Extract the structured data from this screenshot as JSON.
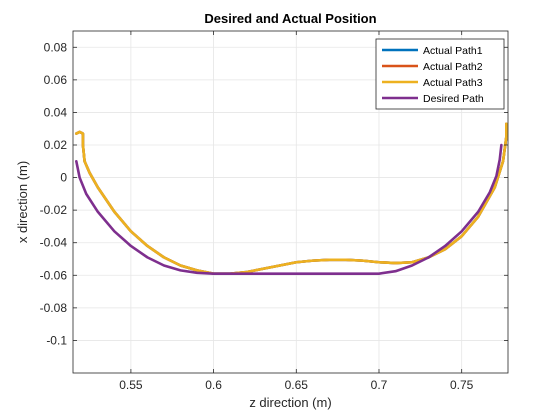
{
  "chart_data": {
    "type": "line",
    "title": "Desired and Actual Position",
    "xlabel": "z direction (m)",
    "ylabel": "x direction (m)",
    "xlim": [
      0.515,
      0.778
    ],
    "ylim": [
      -0.12,
      0.09
    ],
    "xticks": [
      0.55,
      0.6,
      0.65,
      0.7,
      0.75
    ],
    "xtick_labels": [
      "0.55",
      "0.6",
      "0.65",
      "0.7",
      "0.75"
    ],
    "yticks": [
      0.08,
      0.06,
      0.04,
      0.02,
      0,
      -0.02,
      -0.04,
      -0.06,
      -0.08,
      -0.1
    ],
    "ytick_labels": [
      "0.08",
      "0.06",
      "0.04",
      "0.02",
      "0",
      "-0.02",
      "-0.04",
      "-0.06",
      "-0.08",
      "-0.1"
    ],
    "grid": true,
    "legend_position": "top-right",
    "series": [
      {
        "name": "Actual Path1",
        "color": "#0072BD",
        "points": [
          [
            0.517,
            0.027
          ],
          [
            0.519,
            0.028
          ],
          [
            0.521,
            0.027
          ],
          [
            0.521,
            0.02
          ],
          [
            0.522,
            0.01
          ],
          [
            0.525,
            0.003
          ],
          [
            0.53,
            -0.006
          ],
          [
            0.54,
            -0.021
          ],
          [
            0.55,
            -0.033
          ],
          [
            0.56,
            -0.042
          ],
          [
            0.57,
            -0.049
          ],
          [
            0.58,
            -0.054
          ],
          [
            0.59,
            -0.057
          ],
          [
            0.6,
            -0.059
          ],
          [
            0.61,
            -0.059
          ],
          [
            0.62,
            -0.058
          ],
          [
            0.63,
            -0.056
          ],
          [
            0.64,
            -0.054
          ],
          [
            0.65,
            -0.052
          ],
          [
            0.66,
            -0.051
          ],
          [
            0.67,
            -0.0505
          ],
          [
            0.68,
            -0.0505
          ],
          [
            0.69,
            -0.051
          ],
          [
            0.7,
            -0.052
          ],
          [
            0.71,
            -0.0525
          ],
          [
            0.72,
            -0.052
          ],
          [
            0.73,
            -0.049
          ],
          [
            0.74,
            -0.044
          ],
          [
            0.75,
            -0.036
          ],
          [
            0.76,
            -0.024
          ],
          [
            0.77,
            -0.006
          ],
          [
            0.775,
            0.01
          ],
          [
            0.777,
            0.025
          ],
          [
            0.777,
            0.033
          ]
        ]
      },
      {
        "name": "Actual Path2",
        "color": "#D95319",
        "points": [
          [
            0.517,
            0.027
          ],
          [
            0.519,
            0.028
          ],
          [
            0.521,
            0.027
          ],
          [
            0.521,
            0.02
          ],
          [
            0.522,
            0.01
          ],
          [
            0.525,
            0.003
          ],
          [
            0.53,
            -0.006
          ],
          [
            0.54,
            -0.021
          ],
          [
            0.55,
            -0.033
          ],
          [
            0.56,
            -0.042
          ],
          [
            0.57,
            -0.049
          ],
          [
            0.58,
            -0.054
          ],
          [
            0.59,
            -0.057
          ],
          [
            0.6,
            -0.059
          ],
          [
            0.61,
            -0.059
          ],
          [
            0.62,
            -0.058
          ],
          [
            0.63,
            -0.056
          ],
          [
            0.64,
            -0.054
          ],
          [
            0.65,
            -0.052
          ],
          [
            0.66,
            -0.051
          ],
          [
            0.67,
            -0.0505
          ],
          [
            0.68,
            -0.0505
          ],
          [
            0.69,
            -0.051
          ],
          [
            0.7,
            -0.052
          ],
          [
            0.71,
            -0.0525
          ],
          [
            0.72,
            -0.052
          ],
          [
            0.73,
            -0.049
          ],
          [
            0.74,
            -0.044
          ],
          [
            0.75,
            -0.036
          ],
          [
            0.76,
            -0.024
          ],
          [
            0.77,
            -0.006
          ],
          [
            0.775,
            0.01
          ],
          [
            0.777,
            0.025
          ],
          [
            0.777,
            0.033
          ]
        ]
      },
      {
        "name": "Actual Path3",
        "color": "#EDB120",
        "points": [
          [
            0.517,
            0.027
          ],
          [
            0.519,
            0.028
          ],
          [
            0.521,
            0.027
          ],
          [
            0.521,
            0.02
          ],
          [
            0.522,
            0.01
          ],
          [
            0.525,
            0.003
          ],
          [
            0.53,
            -0.006
          ],
          [
            0.54,
            -0.021
          ],
          [
            0.55,
            -0.033
          ],
          [
            0.56,
            -0.042
          ],
          [
            0.57,
            -0.049
          ],
          [
            0.58,
            -0.054
          ],
          [
            0.59,
            -0.057
          ],
          [
            0.6,
            -0.059
          ],
          [
            0.61,
            -0.059
          ],
          [
            0.62,
            -0.058
          ],
          [
            0.63,
            -0.056
          ],
          [
            0.64,
            -0.054
          ],
          [
            0.65,
            -0.052
          ],
          [
            0.66,
            -0.051
          ],
          [
            0.67,
            -0.0505
          ],
          [
            0.68,
            -0.0505
          ],
          [
            0.69,
            -0.051
          ],
          [
            0.7,
            -0.052
          ],
          [
            0.71,
            -0.0525
          ],
          [
            0.72,
            -0.052
          ],
          [
            0.73,
            -0.049
          ],
          [
            0.74,
            -0.044
          ],
          [
            0.75,
            -0.036
          ],
          [
            0.76,
            -0.024
          ],
          [
            0.77,
            -0.006
          ],
          [
            0.775,
            0.01
          ],
          [
            0.777,
            0.025
          ],
          [
            0.777,
            0.033
          ]
        ]
      },
      {
        "name": "Desired Path",
        "color": "#7E2F8E",
        "points": [
          [
            0.517,
            0.01
          ],
          [
            0.519,
            0.0
          ],
          [
            0.523,
            -0.01
          ],
          [
            0.53,
            -0.021
          ],
          [
            0.54,
            -0.033
          ],
          [
            0.55,
            -0.042
          ],
          [
            0.56,
            -0.049
          ],
          [
            0.57,
            -0.054
          ],
          [
            0.58,
            -0.057
          ],
          [
            0.59,
            -0.0585
          ],
          [
            0.6,
            -0.059
          ],
          [
            0.65,
            -0.059
          ],
          [
            0.7,
            -0.059
          ],
          [
            0.71,
            -0.0575
          ],
          [
            0.72,
            -0.054
          ],
          [
            0.73,
            -0.049
          ],
          [
            0.74,
            -0.042
          ],
          [
            0.75,
            -0.033
          ],
          [
            0.76,
            -0.021
          ],
          [
            0.767,
            -0.009
          ],
          [
            0.771,
            0.001
          ],
          [
            0.773,
            0.011
          ],
          [
            0.774,
            0.02
          ]
        ]
      }
    ]
  }
}
